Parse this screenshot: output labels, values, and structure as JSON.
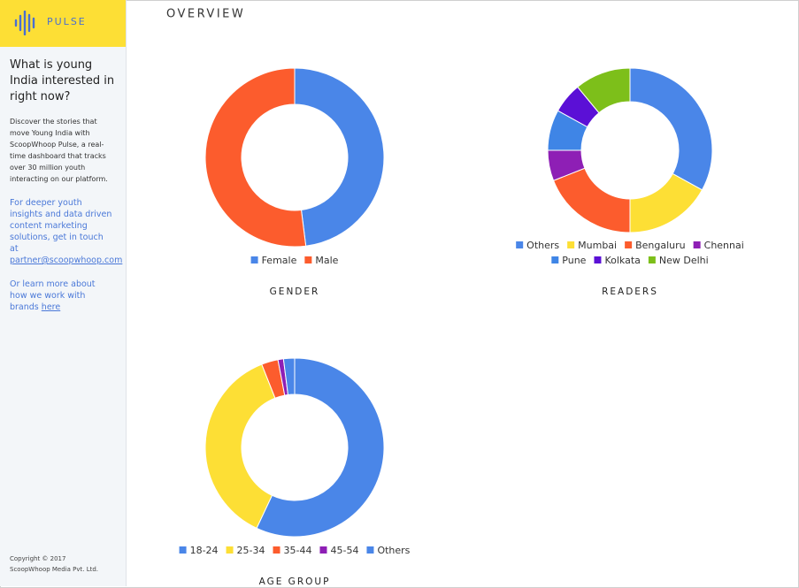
{
  "sidebar": {
    "logo": "PULSE",
    "heading": "What is young India interested in right now?",
    "intro": "Discover the stories that move Young India with ScoopWhoop Pulse, a real-time dashboard that tracks over 30 million youth interacting on our platform.",
    "contact_text": "For deeper youth insights and data driven content marketing solutions, get in touch at",
    "contact_email": "partner@scoopwhoop.com",
    "more_text": "Or learn more about how we work with brands",
    "more_link": "here",
    "copyright": "Copyright © 2017 ScoopWhoop Media Pvt. Ltd."
  },
  "page_title": "OVERVIEW",
  "chart_data": [
    {
      "type": "doughnut",
      "title": "GENDER",
      "categories": [
        "Female",
        "Male"
      ],
      "values": [
        48,
        52
      ],
      "colors": [
        "#4a86e8",
        "#fc5c2d"
      ]
    },
    {
      "type": "doughnut",
      "title": "READERS",
      "categories": [
        "Others",
        "Mumbai",
        "Bengaluru",
        "Chennai",
        "Pune",
        "Kolkata",
        "New Delhi"
      ],
      "values": [
        33,
        17,
        19,
        6,
        8,
        6,
        11
      ],
      "colors": [
        "#4a86e8",
        "#fddf35",
        "#fc5c2d",
        "#8e1fb5",
        "#3f85e6",
        "#5b10d6",
        "#7dbf1a"
      ]
    },
    {
      "type": "doughnut",
      "title": "AGE GROUP",
      "categories": [
        "18-24",
        "25-34",
        "35-44",
        "45-54",
        "Others"
      ],
      "values": [
        57,
        37,
        3,
        1,
        2
      ],
      "colors": [
        "#4a86e8",
        "#fddf35",
        "#fc5c2d",
        "#8e1fb5",
        "#4a86e8"
      ]
    }
  ]
}
